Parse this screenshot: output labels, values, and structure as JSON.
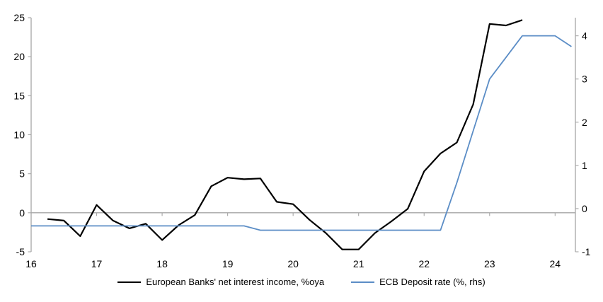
{
  "chart_data": {
    "type": "line",
    "title": "",
    "x_axis": {
      "labels": [
        "16",
        "17",
        "18",
        "19",
        "20",
        "21",
        "22",
        "23",
        "24"
      ],
      "tick_values": [
        16,
        17,
        18,
        19,
        20,
        21,
        22,
        23,
        24
      ],
      "range": [
        16,
        24.31
      ]
    },
    "y_left_axis": {
      "tick_labels": [
        "-5",
        "0",
        "5",
        "10",
        "15",
        "20",
        "25"
      ],
      "tick_values": [
        -5,
        0,
        5,
        10,
        15,
        20,
        25
      ],
      "range": [
        -5,
        25
      ]
    },
    "y_right_axis": {
      "tick_labels": [
        "-1",
        "0",
        "1",
        "2",
        "3",
        "4"
      ],
      "tick_values": [
        -1,
        0,
        1,
        2,
        3,
        4
      ],
      "range": [
        -1,
        4.42
      ]
    },
    "grid": "zero-line-only",
    "legend_position": "bottom",
    "axis_color": "#A6A6A6",
    "series": [
      {
        "name": "European Banks' net interest income, %oya",
        "type": "line",
        "axis": "left",
        "color": "#000000",
        "stroke_width": 2.2,
        "x_start": 16.25,
        "x_step": 0.25,
        "values": [
          -0.8,
          -1.0,
          -3.0,
          1.0,
          -1.0,
          -2.0,
          -1.4,
          -3.5,
          -1.6,
          -0.3,
          3.4,
          4.5,
          4.3,
          4.4,
          1.4,
          1.1,
          -0.9,
          -2.6,
          -4.7,
          -4.7,
          -2.6,
          -1.1,
          0.5,
          5.3,
          7.6,
          9.0,
          13.9,
          24.2,
          24.0,
          24.7
        ]
      },
      {
        "name": "ECB Deposit rate (%, rhs)",
        "type": "line",
        "axis": "right",
        "color": "#5B8DC6",
        "stroke_width": 1.8,
        "x_start": 16.0,
        "x_step": 0.25,
        "values": [
          -0.4,
          -0.4,
          -0.4,
          -0.4,
          -0.4,
          -0.4,
          -0.4,
          -0.4,
          -0.4,
          -0.4,
          -0.4,
          -0.4,
          -0.4,
          -0.4,
          -0.5,
          -0.5,
          -0.5,
          -0.5,
          -0.5,
          -0.5,
          -0.5,
          -0.5,
          -0.5,
          -0.5,
          -0.5,
          -0.5,
          0.6,
          1.8,
          3.0,
          3.5,
          4.0,
          4.0,
          4.0,
          3.75
        ]
      }
    ]
  }
}
